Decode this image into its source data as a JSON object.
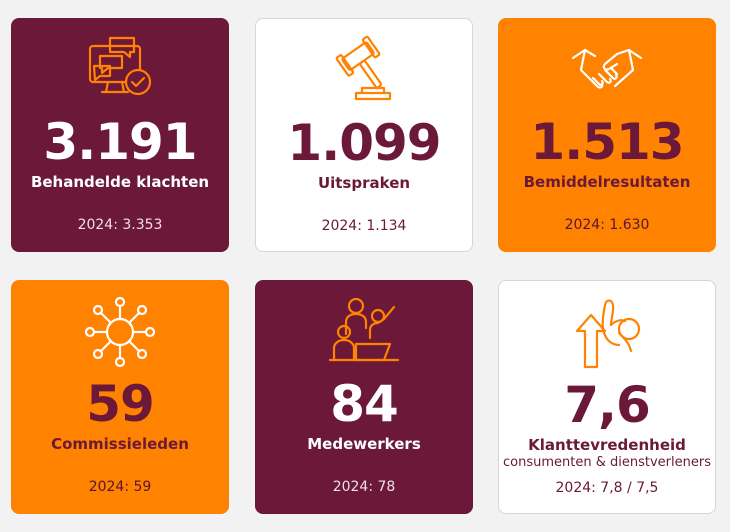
{
  "cards": [
    {
      "value": "3.191",
      "label": "Behandelde klachten",
      "prev": "2024: 3.353",
      "icon": "complaints-chat-check-icon"
    },
    {
      "value": "1.099",
      "label": "Uitspraken",
      "prev": "2024: 1.134",
      "icon": "gavel-icon"
    },
    {
      "value": "1.513",
      "label": "Bemiddelresultaten",
      "prev": "2024: 1.630",
      "icon": "handshake-icon"
    },
    {
      "value": "59",
      "label": "Commissieleden",
      "prev": "2024: 59",
      "icon": "network-hub-icon"
    },
    {
      "value": "84",
      "label": "Medewerkers",
      "prev": "2024: 78",
      "icon": "team-presentation-icon"
    },
    {
      "value": "7,6",
      "label": "Klanttevredenheid",
      "sublabel": "consumenten & dienstverleners",
      "prev": "2024: 7,8 / 7,5",
      "icon": "ok-hand-arrow-icon"
    }
  ],
  "colors": {
    "aubergine": "#6b1839",
    "orange": "#ff8200",
    "white": "#ffffff",
    "background": "#f2f2f2"
  }
}
